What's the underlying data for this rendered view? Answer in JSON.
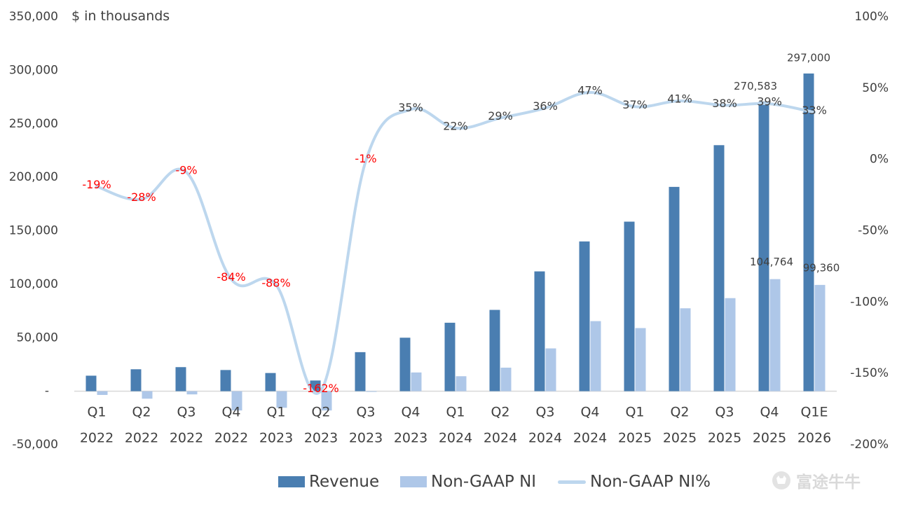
{
  "chart_data": {
    "type": "bar",
    "unit_label": "$ in thousands",
    "categories": [
      [
        "Q1",
        "2022"
      ],
      [
        "Q2",
        "2022"
      ],
      [
        "Q3",
        "2022"
      ],
      [
        "Q4",
        "2022"
      ],
      [
        "Q1",
        "2023"
      ],
      [
        "Q2",
        "2023"
      ],
      [
        "Q3",
        "2023"
      ],
      [
        "Q4",
        "2023"
      ],
      [
        "Q1",
        "2024"
      ],
      [
        "Q2",
        "2024"
      ],
      [
        "Q3",
        "2024"
      ],
      [
        "Q4",
        "2024"
      ],
      [
        "Q1",
        "2025"
      ],
      [
        "Q2",
        "2025"
      ],
      [
        "Q3",
        "2025"
      ],
      [
        "Q4",
        "2025"
      ],
      [
        "Q1E",
        "2026"
      ]
    ],
    "series": [
      {
        "name": "Revenue",
        "kind": "bar",
        "axis": "left",
        "color": "#4a7eb1",
        "values": [
          14500,
          20500,
          22500,
          19800,
          17000,
          10000,
          36500,
          50000,
          64000,
          76000,
          112000,
          140000,
          158500,
          191000,
          230000,
          270583,
          297000
        ]
      },
      {
        "name": "Non-GAAP NI",
        "kind": "bar",
        "axis": "left",
        "color": "#aec7e8",
        "values": [
          -3500,
          -7000,
          -3000,
          -18000,
          -15500,
          -18000,
          -500,
          17500,
          14000,
          22000,
          40000,
          65500,
          59000,
          77500,
          87000,
          104764,
          99360
        ]
      },
      {
        "name": "Non-GAAP NI%",
        "kind": "line",
        "axis": "right",
        "color": "#bdd7ee",
        "values": [
          -19,
          -28,
          -9,
          -84,
          -88,
          -162,
          -1,
          35,
          22,
          29,
          36,
          47,
          37,
          41,
          38,
          39,
          33
        ],
        "labels": [
          "-19%",
          "-28%",
          "-9%",
          "-84%",
          "-88%",
          "-162%",
          "-1%",
          "35%",
          "22%",
          "29%",
          "36%",
          "47%",
          "37%",
          "41%",
          "38%",
          "39%",
          "33%"
        ]
      }
    ],
    "bar_value_labels": [
      {
        "series": 0,
        "index": 15,
        "text": "270,583"
      },
      {
        "series": 0,
        "index": 16,
        "text": "297,000"
      },
      {
        "series": 1,
        "index": 15,
        "text": "104,764"
      },
      {
        "series": 1,
        "index": 16,
        "text": "99,360"
      }
    ],
    "y_left": {
      "min": -50000,
      "max": 350000,
      "ticks": [
        {
          "value": 350000,
          "label": "350,000"
        },
        {
          "value": 300000,
          "label": "300,000"
        },
        {
          "value": 250000,
          "label": "250,000"
        },
        {
          "value": 200000,
          "label": "200,000"
        },
        {
          "value": 150000,
          "label": "150,000"
        },
        {
          "value": 100000,
          "label": "100,000"
        },
        {
          "value": 50000,
          "label": "50,000"
        },
        {
          "value": 0,
          "label": "-"
        },
        {
          "value": -50000,
          "label": "-50,000"
        }
      ]
    },
    "y_right": {
      "min": -200,
      "max": 100,
      "ticks": [
        {
          "value": 100,
          "label": "100%"
        },
        {
          "value": 50,
          "label": "50%"
        },
        {
          "value": 0,
          "label": "0%"
        },
        {
          "value": -50,
          "label": "-50%"
        },
        {
          "value": -100,
          "label": "-100%"
        },
        {
          "value": -150,
          "label": "-150%"
        },
        {
          "value": -200,
          "label": "-200%"
        }
      ]
    },
    "negative_label_color": "#ff0000",
    "label_color": "#404040",
    "legend_position": "bottom",
    "grid": false
  },
  "legend": {
    "revenue": "Revenue",
    "non_gaap_ni": "Non-GAAP NI",
    "non_gaap_ni_pct": "Non-GAAP NI%"
  },
  "watermark": {
    "text": "富途牛牛"
  }
}
